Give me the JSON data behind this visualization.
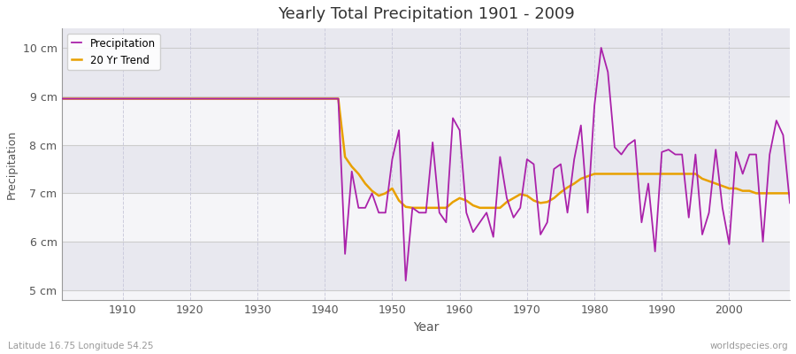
{
  "title": "Yearly Total Precipitation 1901 - 2009",
  "ylabel": "Precipitation",
  "xlabel": "Year",
  "bottom_left_label": "Latitude 16.75 Longitude 54.25",
  "bottom_right_label": "worldspecies.org",
  "background_color": "#ffffff",
  "plot_bg_color": "#f0f0f5",
  "band_color_light": "#f5f5f8",
  "band_color_dark": "#e8e8ef",
  "precip_color": "#aa22aa",
  "trend_color": "#e8a000",
  "ylim": [
    4.8,
    10.4
  ],
  "yticks": [
    5,
    6,
    7,
    8,
    9,
    10
  ],
  "ytick_labels": [
    "5 cm",
    "6 cm",
    "7 cm",
    "8 cm",
    "9 cm",
    "10 cm"
  ],
  "xticks": [
    1910,
    1920,
    1930,
    1940,
    1950,
    1960,
    1970,
    1980,
    1990,
    2000
  ],
  "years": [
    1901,
    1902,
    1903,
    1904,
    1905,
    1906,
    1907,
    1908,
    1909,
    1910,
    1911,
    1912,
    1913,
    1914,
    1915,
    1916,
    1917,
    1918,
    1919,
    1920,
    1921,
    1922,
    1923,
    1924,
    1925,
    1926,
    1927,
    1928,
    1929,
    1930,
    1931,
    1932,
    1933,
    1934,
    1935,
    1936,
    1937,
    1938,
    1939,
    1940,
    1941,
    1942,
    1943,
    1944,
    1945,
    1946,
    1947,
    1948,
    1949,
    1950,
    1951,
    1952,
    1953,
    1954,
    1955,
    1956,
    1957,
    1958,
    1959,
    1960,
    1961,
    1962,
    1963,
    1964,
    1965,
    1966,
    1967,
    1968,
    1969,
    1970,
    1971,
    1972,
    1973,
    1974,
    1975,
    1976,
    1977,
    1978,
    1979,
    1980,
    1981,
    1982,
    1983,
    1984,
    1985,
    1986,
    1987,
    1988,
    1989,
    1990,
    1991,
    1992,
    1993,
    1994,
    1995,
    1996,
    1997,
    1998,
    1999,
    2000,
    2001,
    2002,
    2003,
    2004,
    2005,
    2006,
    2007,
    2008,
    2009
  ],
  "precip": [
    8.95,
    8.95,
    8.95,
    8.95,
    8.95,
    8.95,
    8.95,
    8.95,
    8.95,
    8.95,
    8.95,
    8.95,
    8.95,
    8.95,
    8.95,
    8.95,
    8.95,
    8.95,
    8.95,
    8.95,
    8.95,
    8.95,
    8.95,
    8.95,
    8.95,
    8.95,
    8.95,
    8.95,
    8.95,
    8.95,
    8.95,
    8.95,
    8.95,
    8.95,
    8.95,
    8.95,
    8.95,
    8.95,
    8.95,
    8.95,
    8.95,
    8.95,
    5.75,
    7.45,
    6.7,
    6.7,
    7.0,
    6.6,
    6.6,
    7.7,
    8.3,
    5.2,
    6.7,
    6.6,
    6.6,
    8.05,
    6.6,
    6.4,
    8.55,
    8.3,
    6.6,
    6.2,
    6.4,
    6.6,
    6.1,
    7.75,
    6.9,
    6.5,
    6.7,
    7.7,
    7.6,
    6.15,
    6.4,
    7.5,
    7.6,
    6.6,
    7.7,
    8.4,
    6.6,
    8.8,
    10.0,
    9.5,
    7.95,
    7.8,
    8.0,
    8.1,
    6.4,
    7.2,
    5.8,
    7.85,
    7.9,
    7.8,
    7.8,
    6.5,
    7.8,
    6.15,
    6.6,
    7.9,
    6.7,
    5.95,
    7.85,
    7.4,
    7.8,
    7.8,
    6.0,
    7.8,
    8.5,
    8.2,
    6.8
  ],
  "trend": [
    8.95,
    8.95,
    8.95,
    8.95,
    8.95,
    8.95,
    8.95,
    8.95,
    8.95,
    8.95,
    8.95,
    8.95,
    8.95,
    8.95,
    8.95,
    8.95,
    8.95,
    8.95,
    8.95,
    8.95,
    8.95,
    8.95,
    8.95,
    8.95,
    8.95,
    8.95,
    8.95,
    8.95,
    8.95,
    8.95,
    8.95,
    8.95,
    8.95,
    8.95,
    8.95,
    8.95,
    8.95,
    8.95,
    8.95,
    8.95,
    8.95,
    8.95,
    7.75,
    7.55,
    7.4,
    7.2,
    7.05,
    6.95,
    7.0,
    7.1,
    6.85,
    6.72,
    6.7,
    6.7,
    6.7,
    6.7,
    6.7,
    6.7,
    6.82,
    6.9,
    6.85,
    6.75,
    6.7,
    6.7,
    6.7,
    6.7,
    6.82,
    6.9,
    6.98,
    6.95,
    6.85,
    6.8,
    6.82,
    6.9,
    7.02,
    7.12,
    7.2,
    7.3,
    7.35,
    7.4,
    7.4,
    7.4,
    7.4,
    7.4,
    7.4,
    7.4,
    7.4,
    7.4,
    7.4,
    7.4,
    7.4,
    7.4,
    7.4,
    7.4,
    7.4,
    7.3,
    7.25,
    7.2,
    7.15,
    7.1,
    7.1,
    7.05,
    7.05,
    7.0,
    7.0,
    7.0,
    7.0,
    7.0,
    7.0
  ]
}
